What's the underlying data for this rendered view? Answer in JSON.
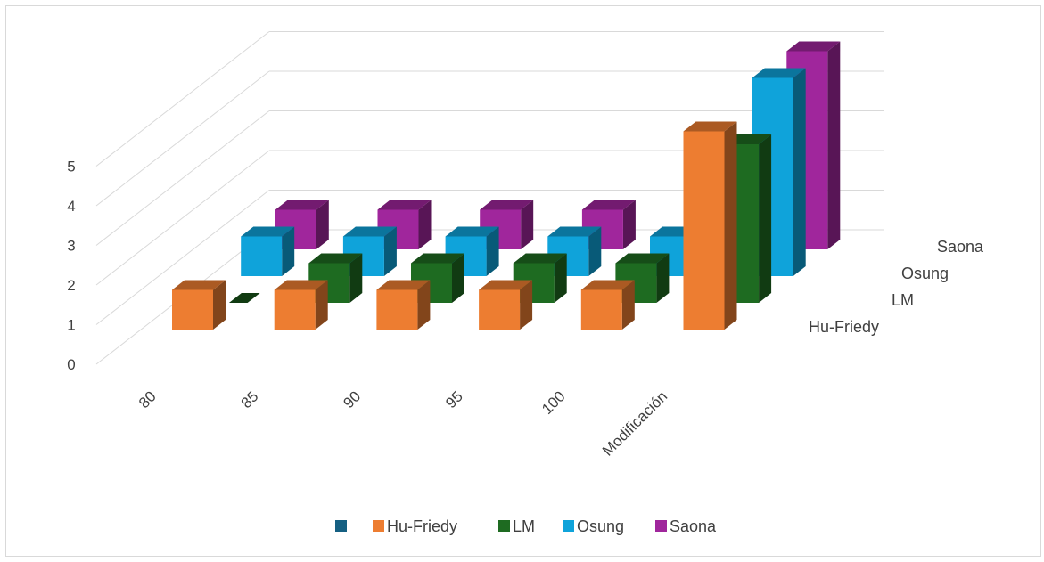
{
  "chart_data": {
    "type": "bar",
    "subtype": "3d-column",
    "categories": [
      "80",
      "85",
      "90",
      "95",
      "100",
      "Modificación"
    ],
    "y_ticks": [
      "0",
      "1",
      "2",
      "3",
      "4",
      "5"
    ],
    "ylim": [
      0,
      5
    ],
    "series": [
      {
        "name": "Hu-Friedy",
        "color": "#ED7D31",
        "values": [
          1,
          1,
          1,
          1,
          1,
          5
        ]
      },
      {
        "name": "LM",
        "color": "#1E6B21",
        "values": [
          0,
          1,
          1,
          1,
          1,
          4
        ]
      },
      {
        "name": "Osung",
        "color": "#0FA3DA",
        "values": [
          1,
          1,
          1,
          1,
          1,
          5
        ]
      },
      {
        "name": "Saona",
        "color": "#A0269C",
        "values": [
          1,
          1,
          1,
          1,
          1,
          5
        ]
      }
    ],
    "legend": {
      "position": "bottom",
      "entries": [
        {
          "name": "",
          "color": "#156082"
        },
        {
          "name": "Hu-Friedy",
          "color": "#ED7D31"
        },
        {
          "name": "LM",
          "color": "#1E6B21"
        },
        {
          "name": "Osung",
          "color": "#0FA3DA"
        },
        {
          "name": "Saona",
          "color": "#A0269C"
        }
      ]
    },
    "grid": true
  }
}
